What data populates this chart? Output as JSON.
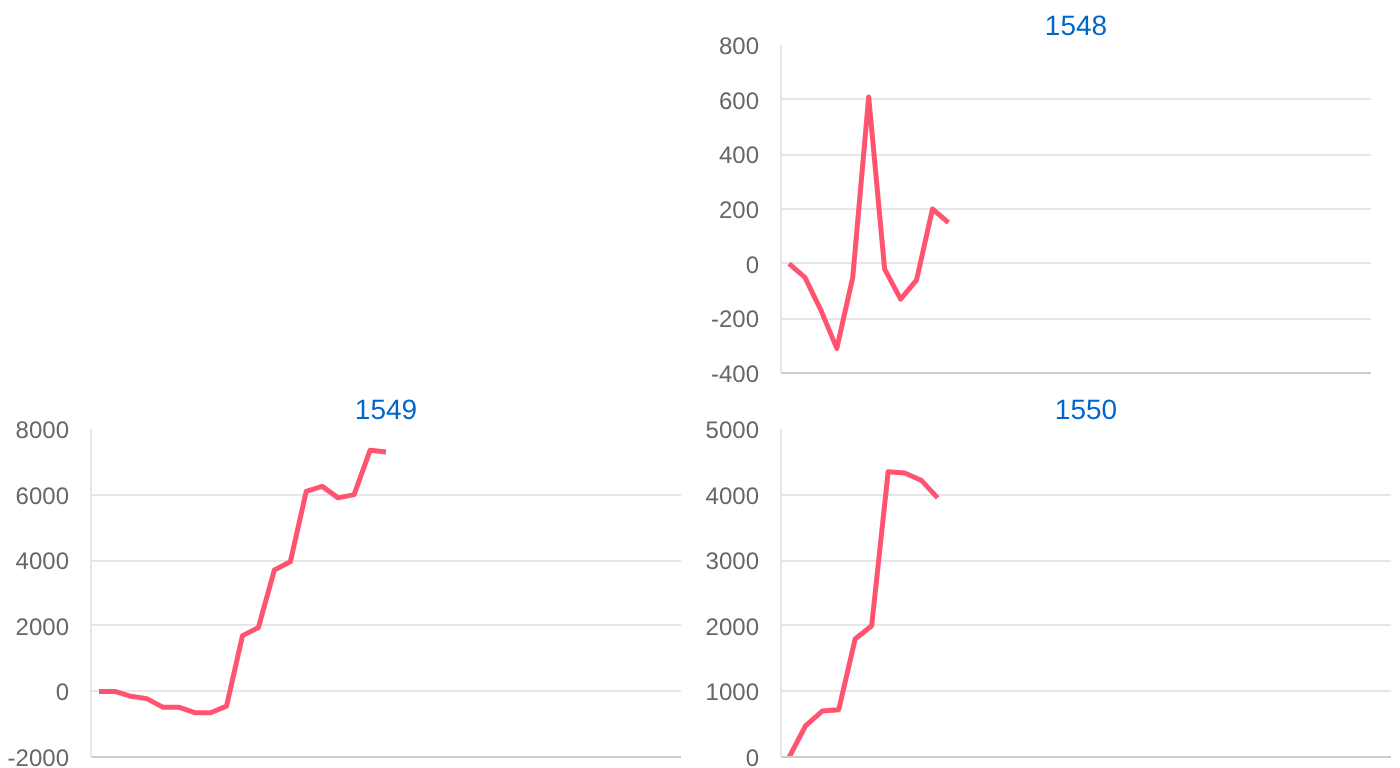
{
  "chart_data": [
    {
      "type": "line",
      "title": "1548",
      "categories": [
        null,
        null,
        null,
        null,
        null,
        null,
        null,
        null,
        null,
        null,
        null,
        null,
        null,
        null,
        null,
        null,
        null,
        null,
        null,
        null,
        null,
        null,
        null,
        null,
        null,
        null,
        null,
        null,
        null,
        null,
        null,
        null,
        null,
        null,
        null,
        null,
        null
      ],
      "series": [
        {
          "color": "#ff5470",
          "values": [
            0,
            -50,
            -170,
            -310,
            -50,
            610,
            -20,
            -130,
            -60,
            200,
            150,
            null,
            null,
            null,
            null,
            null,
            null,
            null,
            null,
            null,
            null,
            null,
            null,
            null,
            null,
            null,
            null,
            null,
            null,
            null,
            null,
            null,
            null,
            null,
            null,
            null,
            null
          ]
        }
      ],
      "ylim": [
        -400,
        800
      ],
      "yticks": [
        -400,
        -200,
        0,
        200,
        400,
        600,
        800
      ],
      "grid": "y",
      "tick_labels": "y",
      "marker": "none",
      "line_style": "solid"
    },
    {
      "type": "line",
      "title": "1549",
      "categories": [
        null,
        null,
        null,
        null,
        null,
        null,
        null,
        null,
        null,
        null,
        null,
        null,
        null,
        null,
        null,
        null,
        null,
        null,
        null,
        null,
        null,
        null,
        null,
        null,
        null,
        null,
        null,
        null,
        null,
        null,
        null,
        null,
        null,
        null,
        null,
        null,
        null
      ],
      "series": [
        {
          "color": "#ff5470",
          "values": [
            0,
            0,
            -150,
            -220,
            -480,
            -480,
            -650,
            -650,
            -450,
            1700,
            1950,
            3700,
            3950,
            6100,
            6250,
            5900,
            6000,
            7350,
            7300,
            null,
            null,
            null,
            null,
            null,
            null,
            null,
            null,
            null,
            null,
            null,
            null,
            null,
            null,
            null,
            null,
            null,
            null
          ]
        }
      ],
      "ylim": [
        -2000,
        8000
      ],
      "yticks": [
        -2000,
        0,
        2000,
        4000,
        6000,
        8000
      ],
      "grid": "y",
      "tick_labels": "y",
      "marker": "none",
      "line_style": "solid"
    },
    {
      "type": "line",
      "title": "1550",
      "categories": [
        null,
        null,
        null,
        null,
        null,
        null,
        null,
        null,
        null,
        null,
        null,
        null,
        null,
        null,
        null,
        null,
        null,
        null,
        null,
        null,
        null,
        null,
        null,
        null,
        null,
        null,
        null,
        null,
        null,
        null,
        null,
        null,
        null,
        null,
        null,
        null,
        null
      ],
      "series": [
        {
          "color": "#ff5470",
          "values": [
            0,
            480,
            700,
            720,
            1800,
            2000,
            4350,
            4330,
            4220,
            3950,
            null,
            null,
            null,
            null,
            null,
            null,
            null,
            null,
            null,
            null,
            null,
            null,
            null,
            null,
            null,
            null,
            null,
            null,
            null,
            null,
            null,
            null,
            null,
            null,
            null,
            null,
            null
          ]
        }
      ],
      "ylim": [
        0,
        5000
      ],
      "yticks": [
        0,
        1000,
        2000,
        3000,
        4000,
        5000
      ],
      "grid": "y",
      "tick_labels": "y",
      "marker": "none",
      "line_style": "solid"
    }
  ]
}
